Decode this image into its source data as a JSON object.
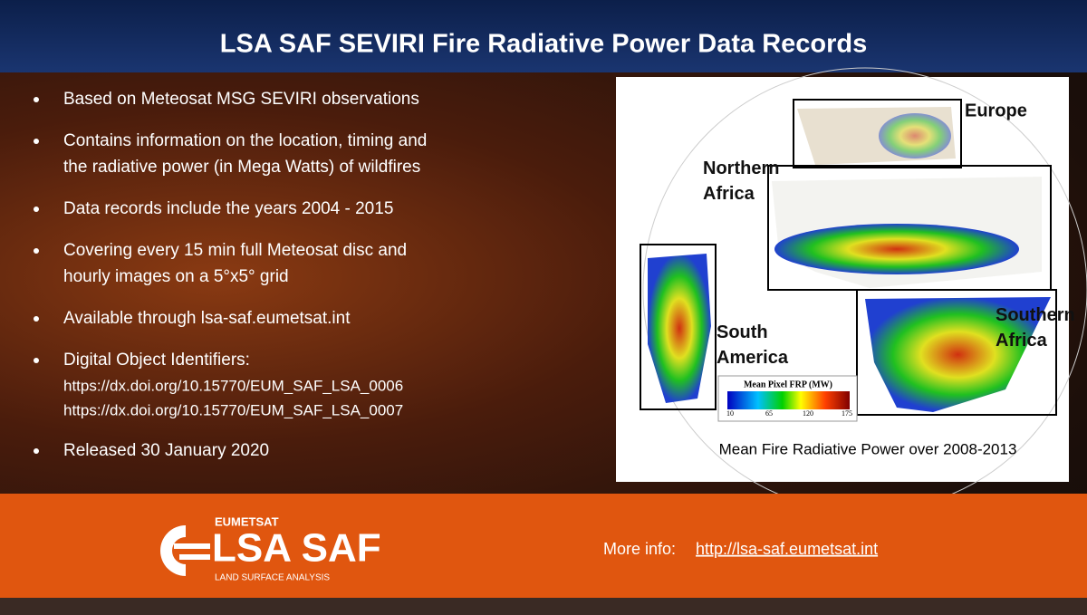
{
  "header": {
    "title": "LSA SAF SEVIRI Fire Radiative Power Data Records"
  },
  "bullets": [
    {
      "lines": [
        "Based on Meteosat MSG SEVIRI observations"
      ]
    },
    {
      "lines": [
        "Contains information on the location, timing and",
        "the radiative power (in Mega Watts) of wildfires"
      ]
    },
    {
      "lines": [
        "Data records include the years 2004 - 2015"
      ]
    },
    {
      "lines": [
        "Covering every 15 min full Meteosat disc and",
        "hourly images on a 5°x5° grid"
      ]
    },
    {
      "lines": [
        "Available through lsa-saf.eumetsat.int"
      ]
    },
    {
      "lines": [
        "Digital Object Identifiers:",
        "https://dx.doi.org/10.15770/EUM_SAF_LSA_0006",
        "https://dx.doi.org/10.15770/EUM_SAF_LSA_0007"
      ]
    },
    {
      "lines": [
        "Released 30 January 2020"
      ]
    }
  ],
  "figure": {
    "regions": [
      "Europe",
      "Northern Africa",
      "South America",
      "Southern Africa"
    ],
    "legend": {
      "title": "Mean Pixel FRP (MW)",
      "ticks": [
        "10",
        "65",
        "120",
        "175"
      ]
    },
    "caption": "Mean Fire Radiative Power over 2008-2013"
  },
  "footer": {
    "org": "EUMETSAT",
    "logo": "LSA SAF",
    "tagline": "LAND SURFACE ANALYSIS",
    "info_label": "More info:",
    "info_link": "http://lsa-saf.eumetsat.int"
  }
}
